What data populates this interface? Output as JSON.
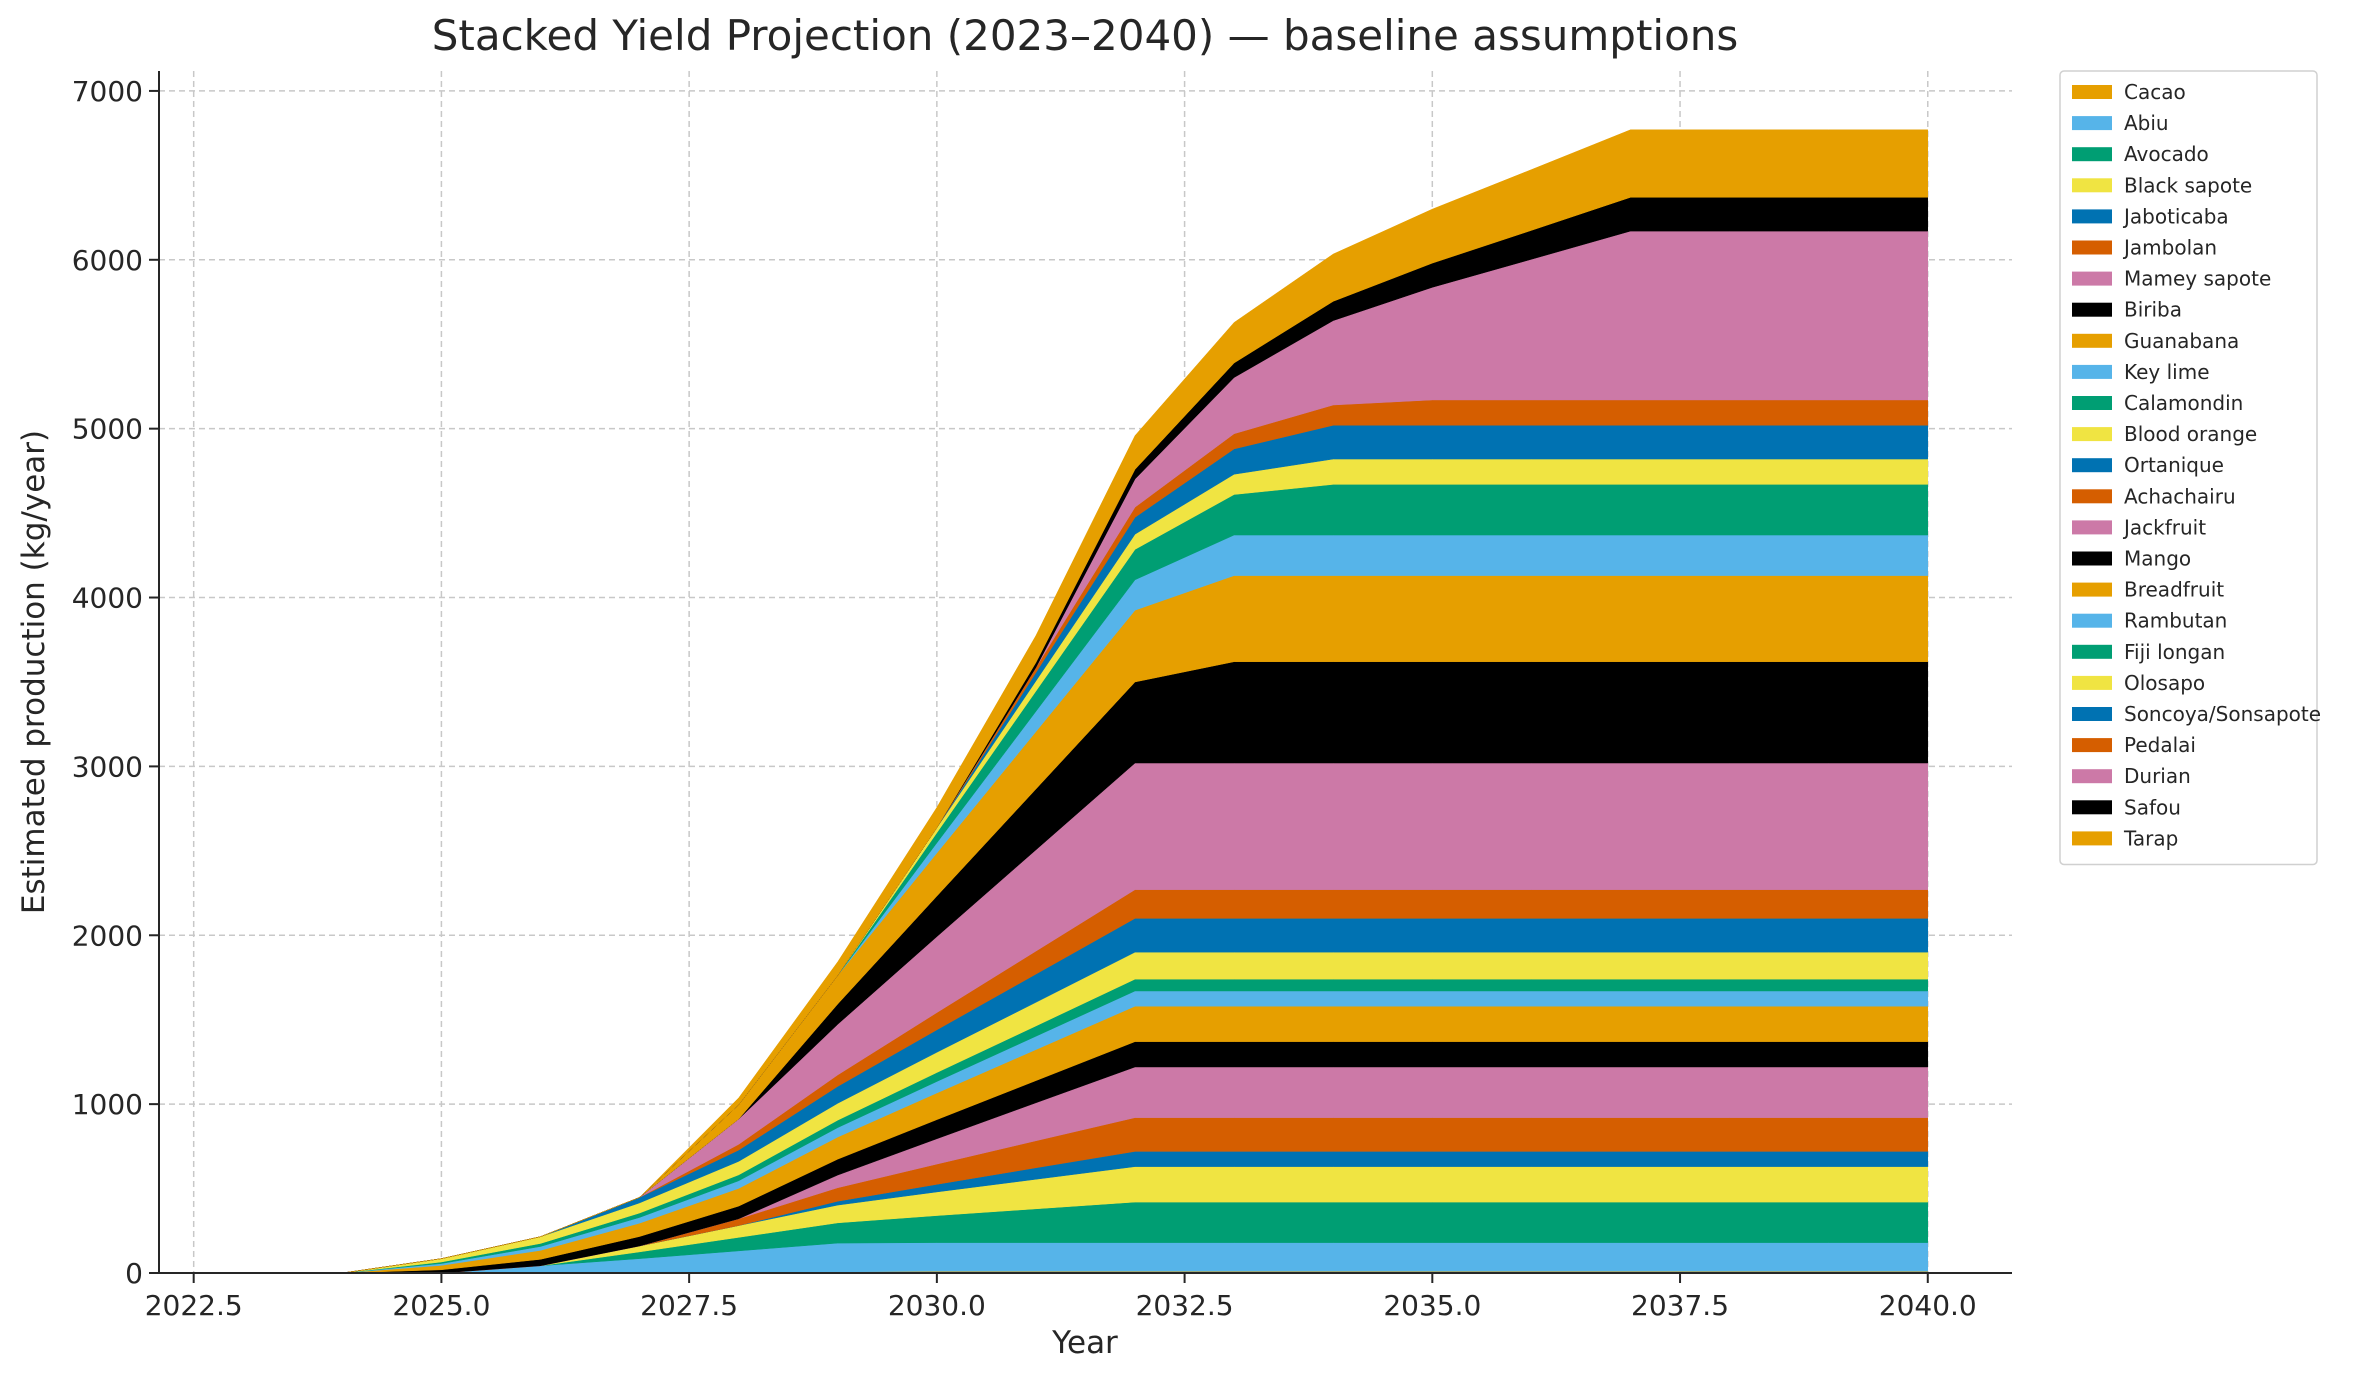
{
  "chart_data": {
    "type": "area",
    "stacked": true,
    "title": "Stacked Yield Projection (2023–2040) — baseline assumptions",
    "xlabel": "Year",
    "ylabel": "Estimated production (kg/year)",
    "xlim": [
      2022.15,
      2040.85
    ],
    "ylim": [
      0,
      7118
    ],
    "xticks": [
      2022.5,
      2025.0,
      2027.5,
      2030.0,
      2032.5,
      2035.0,
      2037.5,
      2040.0
    ],
    "xtick_labels": [
      "2022.5",
      "2025.0",
      "2027.5",
      "2030.0",
      "2032.5",
      "2035.0",
      "2037.5",
      "2040.0"
    ],
    "yticks": [
      0,
      1000,
      2000,
      3000,
      4000,
      5000,
      6000,
      7000
    ],
    "ytick_labels": [
      "0",
      "1000",
      "2000",
      "3000",
      "4000",
      "5000",
      "6000",
      "7000"
    ],
    "grid": true,
    "legend_placement": "outside-right-top",
    "x": [
      2023,
      2024,
      2025,
      2026,
      2027,
      2028,
      2029,
      2030,
      2031,
      2032,
      2033,
      2034,
      2035,
      2036,
      2037,
      2038,
      2039,
      2040
    ],
    "series": [
      {
        "name": "Cacao",
        "color": "#E69F00",
        "values": [
          0,
          0,
          0,
          0,
          0,
          3,
          7,
          10,
          10,
          10,
          10,
          10,
          10,
          10,
          10,
          10,
          10,
          10
        ]
      },
      {
        "name": "Abiu",
        "color": "#56B4E9",
        "values": [
          0,
          0,
          0,
          43,
          85,
          128,
          170,
          170,
          170,
          170,
          170,
          170,
          170,
          170,
          170,
          170,
          170,
          170
        ]
      },
      {
        "name": "Avocado",
        "color": "#009E73",
        "values": [
          0,
          0,
          0,
          0,
          40,
          80,
          120,
          160,
          200,
          240,
          240,
          240,
          240,
          240,
          240,
          240,
          240,
          240
        ]
      },
      {
        "name": "Black sapote",
        "color": "#F0E442",
        "values": [
          0,
          0,
          0,
          0,
          35,
          70,
          105,
          140,
          175,
          210,
          210,
          210,
          210,
          210,
          210,
          210,
          210,
          210
        ]
      },
      {
        "name": "Jaboticaba",
        "color": "#0072B2",
        "values": [
          0,
          0,
          0,
          0,
          0,
          0,
          23,
          45,
          68,
          90,
          90,
          90,
          90,
          90,
          90,
          90,
          90,
          90
        ]
      },
      {
        "name": "Jambolan",
        "color": "#D55E00",
        "values": [
          0,
          0,
          0,
          0,
          0,
          40,
          80,
          120,
          160,
          200,
          200,
          200,
          200,
          200,
          200,
          200,
          200,
          200
        ]
      },
      {
        "name": "Mamey sapote",
        "color": "#CC79A7",
        "values": [
          0,
          0,
          0,
          0,
          0,
          0,
          75,
          150,
          225,
          300,
          300,
          300,
          300,
          300,
          300,
          300,
          300,
          300
        ]
      },
      {
        "name": "Biriba",
        "color": "#000000",
        "values": [
          0,
          0,
          19,
          38,
          56,
          75,
          94,
          113,
          131,
          150,
          150,
          150,
          150,
          150,
          150,
          150,
          150,
          150
        ]
      },
      {
        "name": "Guanabana",
        "color": "#E69F00",
        "values": [
          0,
          0,
          26,
          53,
          79,
          105,
          131,
          158,
          184,
          210,
          210,
          210,
          210,
          210,
          210,
          210,
          210,
          210
        ]
      },
      {
        "name": "Key lime",
        "color": "#56B4E9",
        "values": [
          0,
          0,
          11,
          23,
          34,
          45,
          56,
          68,
          79,
          90,
          90,
          90,
          90,
          90,
          90,
          90,
          90,
          90
        ]
      },
      {
        "name": "Calamondin",
        "color": "#009E73",
        "values": [
          0,
          0,
          9,
          18,
          26,
          35,
          44,
          53,
          61,
          70,
          70,
          70,
          70,
          70,
          70,
          70,
          70,
          70
        ]
      },
      {
        "name": "Blood orange",
        "color": "#F0E442",
        "values": [
          0,
          0,
          20,
          40,
          60,
          80,
          100,
          120,
          140,
          160,
          160,
          160,
          160,
          160,
          160,
          160,
          160,
          160
        ]
      },
      {
        "name": "Ortanique",
        "color": "#0072B2",
        "values": [
          0,
          0,
          0,
          0,
          33,
          67,
          100,
          133,
          167,
          200,
          200,
          200,
          200,
          200,
          200,
          200,
          200,
          200
        ]
      },
      {
        "name": "Achachairu",
        "color": "#D55E00",
        "values": [
          0,
          0,
          0,
          0,
          0,
          34,
          68,
          102,
          136,
          170,
          170,
          170,
          170,
          170,
          170,
          170,
          170,
          170
        ]
      },
      {
        "name": "Jackfruit",
        "color": "#CC79A7",
        "values": [
          0,
          0,
          0,
          0,
          0,
          150,
          300,
          450,
          600,
          750,
          750,
          750,
          750,
          750,
          750,
          750,
          750,
          750
        ]
      },
      {
        "name": "Mango",
        "color": "#000000",
        "values": [
          0,
          0,
          0,
          0,
          0,
          0,
          120,
          240,
          360,
          480,
          600,
          600,
          600,
          600,
          600,
          600,
          600,
          600
        ]
      },
      {
        "name": "Breadfruit",
        "color": "#E69F00",
        "values": [
          0,
          0,
          0,
          0,
          0,
          85,
          170,
          255,
          340,
          425,
          510,
          510,
          510,
          510,
          510,
          510,
          510,
          510
        ]
      },
      {
        "name": "Rambutan",
        "color": "#56B4E9",
        "values": [
          0,
          0,
          0,
          0,
          0,
          0,
          0,
          60,
          120,
          180,
          240,
          240,
          240,
          240,
          240,
          240,
          240,
          240
        ]
      },
      {
        "name": "Fiji longan",
        "color": "#009E73",
        "values": [
          0,
          0,
          0,
          0,
          0,
          0,
          0,
          60,
          120,
          180,
          240,
          300,
          300,
          300,
          300,
          300,
          300,
          300
        ]
      },
      {
        "name": "Olosapo",
        "color": "#F0E442",
        "values": [
          0,
          0,
          0,
          0,
          0,
          0,
          0,
          30,
          60,
          90,
          120,
          150,
          150,
          150,
          150,
          150,
          150,
          150
        ]
      },
      {
        "name": "Soncoya/Sonsapote",
        "color": "#0072B2",
        "values": [
          0,
          0,
          0,
          0,
          0,
          0,
          0,
          0,
          50,
          100,
          150,
          200,
          200,
          200,
          200,
          200,
          200,
          200
        ]
      },
      {
        "name": "Pedalai",
        "color": "#D55E00",
        "values": [
          0,
          0,
          0,
          0,
          0,
          0,
          0,
          0,
          30,
          60,
          90,
          120,
          150,
          150,
          150,
          150,
          150,
          150
        ]
      },
      {
        "name": "Durian",
        "color": "#CC79A7",
        "values": [
          0,
          0,
          0,
          0,
          0,
          0,
          0,
          0,
          0,
          167,
          333,
          500,
          667,
          833,
          1000,
          1000,
          1000,
          1000
        ]
      },
      {
        "name": "Safou",
        "color": "#000000",
        "values": [
          0,
          0,
          0,
          0,
          0,
          0,
          0,
          0,
          29,
          57,
          86,
          114,
          143,
          171,
          200,
          200,
          200,
          200
        ]
      },
      {
        "name": "Tarap",
        "color": "#E69F00",
        "values": [
          0,
          0,
          0,
          0,
          0,
          40,
          80,
          120,
          160,
          200,
          240,
          280,
          320,
          360,
          400,
          400,
          400,
          400
        ]
      }
    ]
  }
}
